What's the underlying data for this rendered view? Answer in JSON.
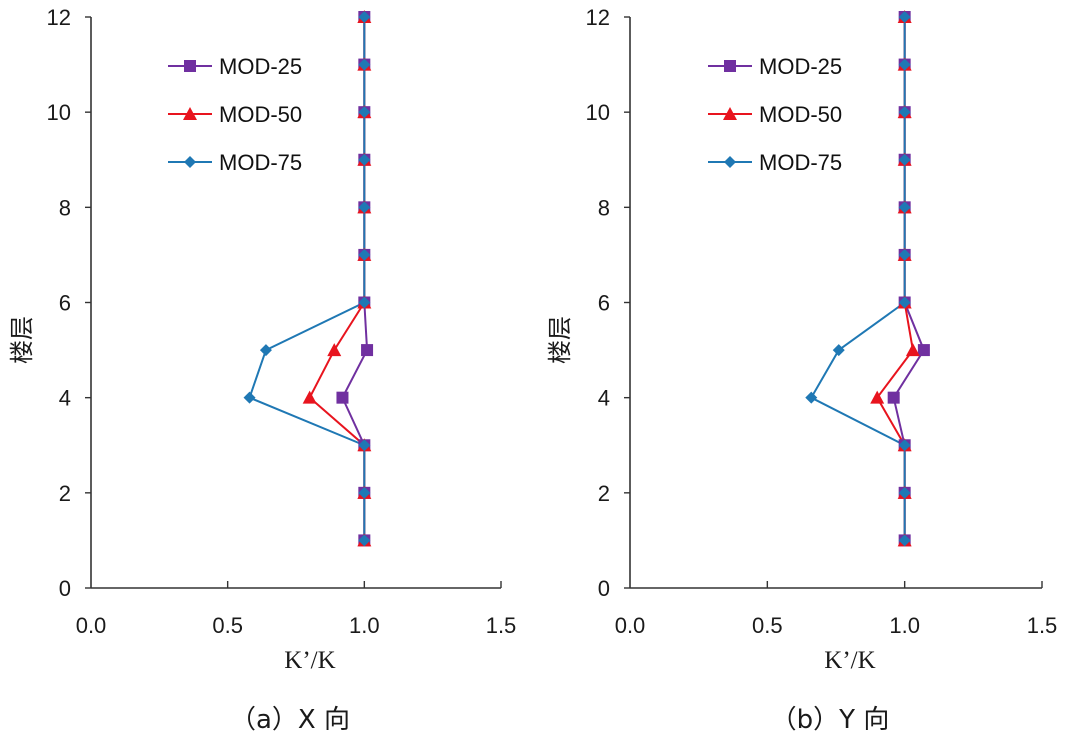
{
  "chart_data": [
    {
      "type": "line",
      "title": "",
      "caption": "（a）X 向",
      "xlabel": "K’/K",
      "ylabel": "楼层",
      "xlim": [
        0,
        1.5
      ],
      "ylim": [
        0,
        12
      ],
      "xticks": [
        "0.0",
        "0.5",
        "1.0",
        "1.5"
      ],
      "xtick_values": [
        0,
        0.5,
        1.0,
        1.5
      ],
      "yticks": [
        "0",
        "2",
        "4",
        "6",
        "8",
        "10",
        "12"
      ],
      "ytick_values": [
        0,
        2,
        4,
        6,
        8,
        10,
        12
      ],
      "grid": false,
      "legend_position": "top-left",
      "y": [
        1,
        2,
        3,
        4,
        5,
        6,
        7,
        8,
        9,
        10,
        11,
        12
      ],
      "series": [
        {
          "name": "MOD-25",
          "color": "#7030A0",
          "marker": "square",
          "values": [
            1.0,
            1.0,
            1.0,
            0.92,
            1.01,
            1.0,
            1.0,
            1.0,
            1.0,
            1.0,
            1.0,
            1.0
          ]
        },
        {
          "name": "MOD-50",
          "color": "#E8141E",
          "marker": "triangle",
          "values": [
            1.0,
            1.0,
            1.0,
            0.8,
            0.89,
            1.0,
            1.0,
            1.0,
            1.0,
            1.0,
            1.0,
            1.0
          ]
        },
        {
          "name": "MOD-75",
          "color": "#1F78B4",
          "marker": "diamond",
          "values": [
            1.0,
            1.0,
            1.0,
            0.58,
            0.64,
            1.0,
            1.0,
            1.0,
            1.0,
            1.0,
            1.0,
            1.0
          ]
        }
      ]
    },
    {
      "type": "line",
      "title": "",
      "caption": "（b）Y 向",
      "xlabel": "K’/K",
      "ylabel": "楼层",
      "xlim": [
        0,
        1.5
      ],
      "ylim": [
        0,
        12
      ],
      "xticks": [
        "0.0",
        "0.5",
        "1.0",
        "1.5"
      ],
      "xtick_values": [
        0,
        0.5,
        1.0,
        1.5
      ],
      "yticks": [
        "0",
        "2",
        "4",
        "6",
        "8",
        "10",
        "12"
      ],
      "ytick_values": [
        0,
        2,
        4,
        6,
        8,
        10,
        12
      ],
      "grid": false,
      "legend_position": "top-left",
      "y": [
        1,
        2,
        3,
        4,
        5,
        6,
        7,
        8,
        9,
        10,
        11,
        12
      ],
      "series": [
        {
          "name": "MOD-25",
          "color": "#7030A0",
          "marker": "square",
          "values": [
            1.0,
            1.0,
            1.0,
            0.96,
            1.07,
            1.0,
            1.0,
            1.0,
            1.0,
            1.0,
            1.0,
            1.0
          ]
        },
        {
          "name": "MOD-50",
          "color": "#E8141E",
          "marker": "triangle",
          "values": [
            1.0,
            1.0,
            1.0,
            0.9,
            1.03,
            1.0,
            1.0,
            1.0,
            1.0,
            1.0,
            1.0,
            1.0
          ]
        },
        {
          "name": "MOD-75",
          "color": "#1F78B4",
          "marker": "diamond",
          "values": [
            1.0,
            1.0,
            1.0,
            0.66,
            0.76,
            1.0,
            1.0,
            1.0,
            1.0,
            1.0,
            1.0,
            1.0
          ]
        }
      ]
    }
  ]
}
